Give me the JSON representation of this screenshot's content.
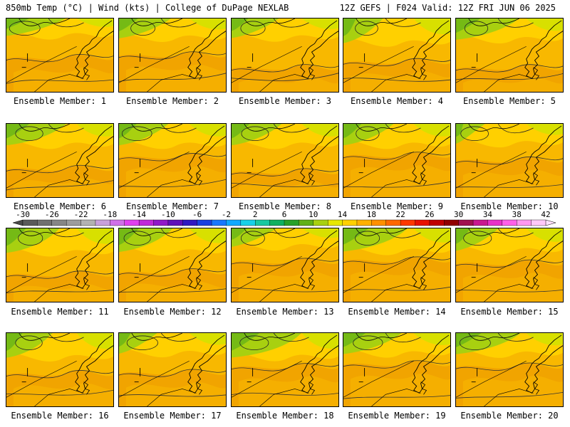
{
  "header": {
    "left_title": "850mb Temp (°C) | Wind (kts) | College of DuPage NEXLAB",
    "right_title": "12Z GEFS | F024 Valid: 12Z FRI JUN 06 2025"
  },
  "member_prefix": "Ensemble Member: ",
  "members": [
    1,
    2,
    3,
    4,
    5,
    6,
    7,
    8,
    9,
    10,
    11,
    12,
    13,
    14,
    15,
    16,
    17,
    18,
    19,
    20
  ],
  "colorbar": {
    "labels": [
      "-30",
      "-26",
      "-22",
      "-18",
      "-14",
      "-10",
      "-6",
      "-2",
      "2",
      "6",
      "10",
      "14",
      "18",
      "22",
      "26",
      "30",
      "34",
      "38",
      "42"
    ],
    "colors": [
      "#5a5a5a",
      "#707070",
      "#868686",
      "#9c9c9c",
      "#b2b2b2",
      "#c8a0dc",
      "#d070e8",
      "#e040f0",
      "#c028d8",
      "#9018c8",
      "#6010b8",
      "#3018c0",
      "#1840e0",
      "#1878ff",
      "#10a8ff",
      "#18d0e8",
      "#18c8a0",
      "#10b060",
      "#28a028",
      "#60b018",
      "#a8d010",
      "#e8e800",
      "#ffd000",
      "#ffb000",
      "#ff9000",
      "#ff6800",
      "#ff3800",
      "#e81000",
      "#c00000",
      "#900000",
      "#a01050",
      "#c81890",
      "#e830c8",
      "#ff60e8",
      "#ff98f0",
      "#ffc8f8"
    ]
  },
  "map_colors": {
    "orange": "#f0a000",
    "light_orange": "#f8b800",
    "gold": "#ffd000",
    "yellow_green": "#d8e000",
    "green": "#a8d010",
    "bright_green": "#60b018"
  }
}
